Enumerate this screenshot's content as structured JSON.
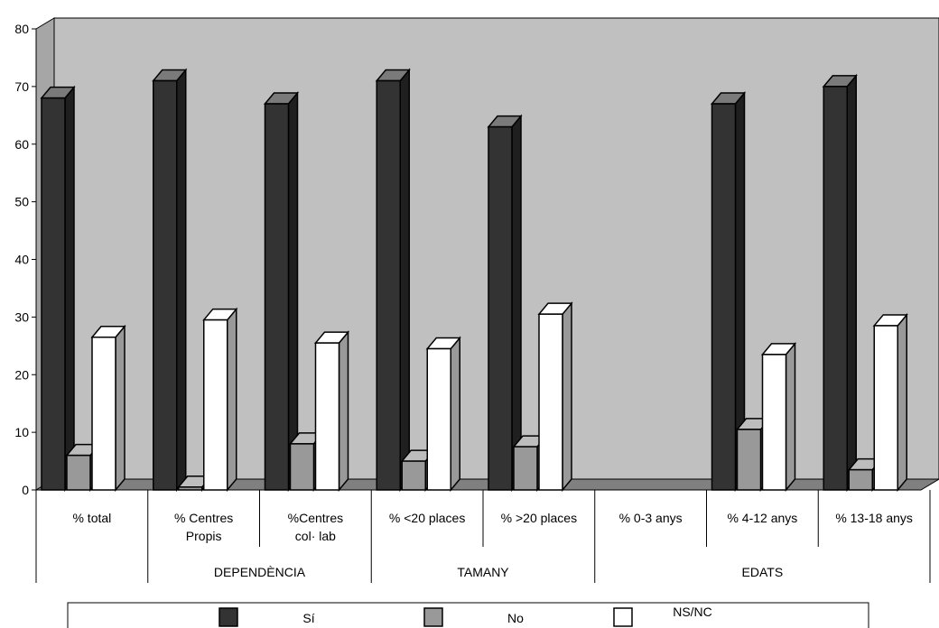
{
  "chart_data": {
    "type": "bar",
    "title": "",
    "xlabel": "",
    "ylabel": "",
    "ylim": [
      0,
      80
    ],
    "yticks": [
      0,
      10,
      20,
      30,
      40,
      50,
      60,
      70,
      80
    ],
    "categories": [
      [
        "% total"
      ],
      [
        "% Centres",
        "Propis"
      ],
      [
        "%Centres",
        "col· lab"
      ],
      [
        "% <20 places"
      ],
      [
        "% >20 places"
      ],
      [
        "% 0-3 anys"
      ],
      [
        "% 4-12 anys"
      ],
      [
        "% 13-18 anys"
      ]
    ],
    "groups": [
      {
        "label": "",
        "from": 0,
        "to": 0
      },
      {
        "label": "DEPENDÈNCIA",
        "from": 1,
        "to": 2
      },
      {
        "label": "TAMANY",
        "from": 3,
        "to": 4
      },
      {
        "label": "EDATS",
        "from": 5,
        "to": 7
      }
    ],
    "series": [
      {
        "name": "Sí",
        "color": "#333333",
        "values": [
          68,
          71,
          67,
          71,
          63,
          null,
          67,
          70
        ]
      },
      {
        "name": "No",
        "color": "#999999",
        "values": [
          6,
          0.5,
          8,
          5,
          7.5,
          null,
          10.5,
          3.5
        ]
      },
      {
        "name": "NS/NC",
        "color": "#ffffff",
        "values": [
          26.5,
          29.5,
          25.5,
          24.5,
          30.5,
          null,
          23.5,
          28.5
        ]
      }
    ],
    "grid": false,
    "legend_position": "bottom",
    "plot_background": "#c0c0c0"
  }
}
